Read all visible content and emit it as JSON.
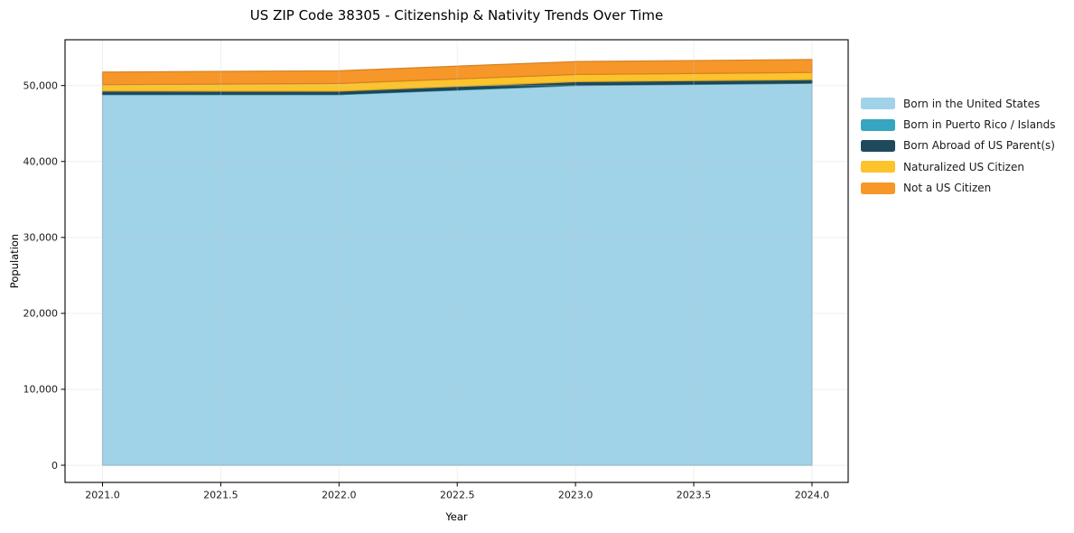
{
  "chart_data": {
    "type": "area",
    "stacked": true,
    "title": "US ZIP Code 38305 - Citizenship & Nativity Trends Over Time",
    "xlabel": "Year",
    "ylabel": "Population",
    "x": [
      2021,
      2022,
      2023,
      2024
    ],
    "series": [
      {
        "name": "Born in the United States",
        "color": "#a0d2e8",
        "values": [
          48800,
          48800,
          50000,
          50300
        ]
      },
      {
        "name": "Born in Puerto Rico / Islands",
        "color": "#36a5bf",
        "values": [
          80,
          80,
          80,
          80
        ]
      },
      {
        "name": "Born Abroad of US Parent(s)",
        "color": "#1f4a5e",
        "values": [
          400,
          380,
          430,
          400
        ]
      },
      {
        "name": "Naturalized US Citizen",
        "color": "#fcc32b",
        "values": [
          830,
          1020,
          950,
          950
        ]
      },
      {
        "name": "Not a US Citizen",
        "color": "#f79729",
        "values": [
          1670,
          1670,
          1700,
          1700
        ]
      }
    ],
    "xlim": [
      2020.8415,
      2024.153
    ],
    "ylim": [
      -2260,
      56032
    ],
    "xticks": {
      "values": [
        2021,
        2021.5,
        2022,
        2022.5,
        2023,
        2023.5,
        2024
      ],
      "labels": [
        "2021.0",
        "2021.5",
        "2022.0",
        "2022.5",
        "2023.0",
        "2023.5",
        "2024.0"
      ]
    },
    "yticks": {
      "values": [
        0,
        10000,
        20000,
        30000,
        40000,
        50000
      ],
      "labels": [
        "0",
        "10,000",
        "20,000",
        "30,000",
        "40,000",
        "50,000"
      ]
    },
    "grid": true,
    "legend_position": "right",
    "colors": {
      "background": "#ffffff",
      "axis": "#000000",
      "grid": "#cccccc",
      "tick_text": "#1a1a1a"
    }
  }
}
